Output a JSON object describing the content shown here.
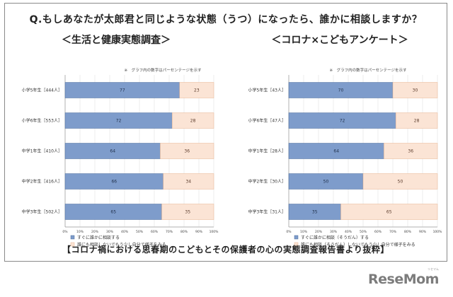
{
  "question": "Q.もしあなたが太郎君と同じような状態（うつ）になったら、誰かに相談しますか？",
  "source_line": "【コロナ禍における思春期のこどもとその保護者の心の実態調査報告書より抜粋】",
  "logo": {
    "text": "ReseMom",
    "ruby": "リセマム"
  },
  "colors": {
    "bar_primary": "#7e9ccb",
    "bar_secondary": "#fbe4d5",
    "bar_stroke": "#4b6a9b",
    "bar2_stroke": "#e8b48f"
  },
  "chart_data": [
    {
      "type": "bar",
      "orientation": "horizontal",
      "stacked": true,
      "title": "＜生活と健康実態調査＞",
      "note": "※　グラフ内の数字はパーセンテージを示す",
      "categories": [
        "小学5年生［444人］",
        "小学6年生［553人］",
        "中学1年生［410人］",
        "中学2年生［416人］",
        "中学3年生［502人］"
      ],
      "series": [
        {
          "name": "すぐに誰かに相談する",
          "values": [
            77,
            72,
            64,
            66,
            65
          ]
        },
        {
          "name": "誰にも相談しないでもう少し自分で様子をみる",
          "values": [
            23,
            28,
            36,
            34,
            35
          ]
        }
      ],
      "xlim": [
        0,
        100
      ],
      "xticks": [
        "0%",
        "10%",
        "20%",
        "30%",
        "40%",
        "50%",
        "60%",
        "70%",
        "80%",
        "90%",
        "100%"
      ],
      "legend_position": "bottom"
    },
    {
      "type": "bar",
      "orientation": "horizontal",
      "stacked": true,
      "title": "＜コロナ×こどもアンケート＞",
      "note": "※　グラフ内の数字はパーセンテージを示す",
      "categories": [
        "小学5年生［43人］",
        "小学6年生［47人］",
        "中学1年生［28人］",
        "中学2年生［30人］",
        "中学3年生［31人］"
      ],
      "series": [
        {
          "name": "すぐに誰かに相談（そうだん）する",
          "values": [
            70,
            72,
            64,
            50,
            35
          ]
        },
        {
          "name": "誰にも相談（そうだん）しないでもう少し自分で様子をみる",
          "values": [
            30,
            28,
            36,
            50,
            65
          ]
        }
      ],
      "xlim": [
        0,
        100
      ],
      "xticks": [
        "0%",
        "10%",
        "20%",
        "30%",
        "40%",
        "50%",
        "60%",
        "70%",
        "80%",
        "90%",
        "100%"
      ],
      "legend_position": "bottom"
    }
  ]
}
